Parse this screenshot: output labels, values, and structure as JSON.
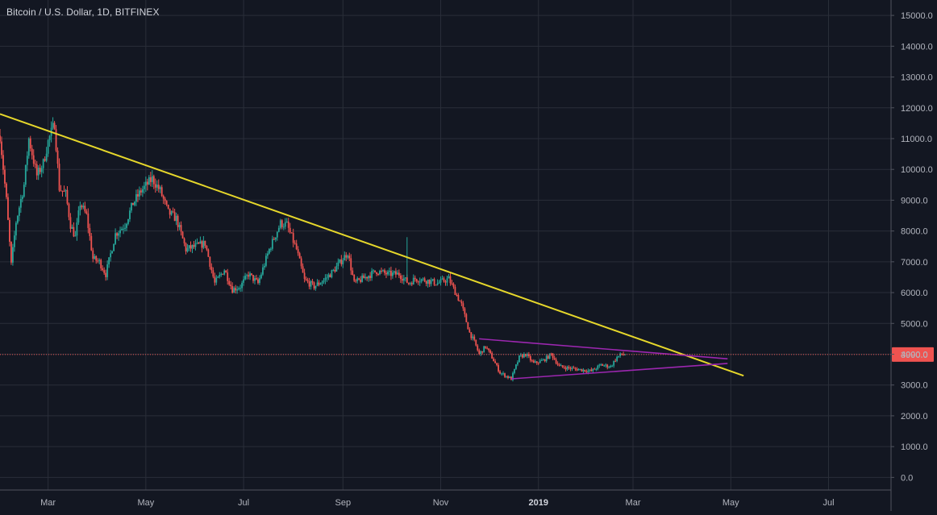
{
  "header": {
    "title": "Bitcoin / U.S. Dollar, 1D, BITFINEX"
  },
  "colors": {
    "background": "#131722",
    "grid": "#2a2e39",
    "up": "#26a69a",
    "down": "#ef5350",
    "trendline": "#e6d72b",
    "triangle": "#9c27b0",
    "price_line": "#ef5350",
    "axis_text": "#b2b5be"
  },
  "chart_data": {
    "type": "candlestick",
    "title": "Bitcoin / U.S. Dollar, 1D, BITFINEX",
    "ylim": [
      -200,
      15500
    ],
    "y_ticks": [
      "0.0",
      "1000.0",
      "2000.0",
      "3000.0",
      "4000.0",
      "5000.0",
      "6000.0",
      "7000.0",
      "8000.0",
      "9000.0",
      "10000.0",
      "11000.0",
      "12000.0",
      "13000.0",
      "14000.0",
      "15000.0"
    ],
    "x_ticks": [
      {
        "label": "Mar",
        "date": "2018-03-01",
        "bold": false
      },
      {
        "label": "May",
        "date": "2018-05-01",
        "bold": false
      },
      {
        "label": "Jul",
        "date": "2018-07-01",
        "bold": false
      },
      {
        "label": "Sep",
        "date": "2018-09-01",
        "bold": false
      },
      {
        "label": "Nov",
        "date": "2018-11-01",
        "bold": false
      },
      {
        "label": "2019",
        "date": "2019-01-01",
        "bold": true
      },
      {
        "label": "Mar",
        "date": "2019-03-01",
        "bold": false
      },
      {
        "label": "May",
        "date": "2019-05-01",
        "bold": false
      },
      {
        "label": "Jul",
        "date": "2019-07-01",
        "bold": false
      }
    ],
    "x_range": [
      "2018-01-30",
      "2019-08-09"
    ],
    "last_price": 3990.0,
    "last_price_label": "3990.0",
    "close_path": [
      [
        "2018-01-30",
        11100
      ],
      [
        "2018-02-03",
        9000
      ],
      [
        "2018-02-06",
        6900
      ],
      [
        "2018-02-09",
        8300
      ],
      [
        "2018-02-14",
        9500
      ],
      [
        "2018-02-17",
        11000
      ],
      [
        "2018-02-22",
        9800
      ],
      [
        "2018-02-26",
        10200
      ],
      [
        "2018-03-01",
        10900
      ],
      [
        "2018-03-05",
        11500
      ],
      [
        "2018-03-08",
        9400
      ],
      [
        "2018-03-12",
        9200
      ],
      [
        "2018-03-15",
        8200
      ],
      [
        "2018-03-18",
        7800
      ],
      [
        "2018-03-21",
        8900
      ],
      [
        "2018-03-25",
        8500
      ],
      [
        "2018-03-29",
        7100
      ],
      [
        "2018-04-02",
        7000
      ],
      [
        "2018-04-06",
        6600
      ],
      [
        "2018-04-12",
        7900
      ],
      [
        "2018-04-18",
        8200
      ],
      [
        "2018-04-23",
        8900
      ],
      [
        "2018-04-28",
        9300
      ],
      [
        "2018-05-05",
        9700
      ],
      [
        "2018-05-10",
        9300
      ],
      [
        "2018-05-15",
        8600
      ],
      [
        "2018-05-20",
        8400
      ],
      [
        "2018-05-26",
        7400
      ],
      [
        "2018-06-01",
        7500
      ],
      [
        "2018-06-07",
        7600
      ],
      [
        "2018-06-13",
        6300
      ],
      [
        "2018-06-19",
        6750
      ],
      [
        "2018-06-24",
        6100
      ],
      [
        "2018-06-29",
        6200
      ],
      [
        "2018-07-04",
        6600
      ],
      [
        "2018-07-10",
        6300
      ],
      [
        "2018-07-17",
        7400
      ],
      [
        "2018-07-24",
        8250
      ],
      [
        "2018-07-28",
        8200
      ],
      [
        "2018-08-03",
        7400
      ],
      [
        "2018-08-08",
        6400
      ],
      [
        "2018-08-14",
        6200
      ],
      [
        "2018-08-20",
        6400
      ],
      [
        "2018-08-26",
        6700
      ],
      [
        "2018-09-04",
        7300
      ],
      [
        "2018-09-08",
        6300
      ],
      [
        "2018-09-15",
        6500
      ],
      [
        "2018-09-22",
        6700
      ],
      [
        "2018-09-29",
        6600
      ],
      [
        "2018-10-06",
        6600
      ],
      [
        "2018-10-12",
        6300
      ],
      [
        "2018-10-16",
        6450
      ],
      [
        "2018-10-23",
        6400
      ],
      [
        "2018-10-30",
        6300
      ],
      [
        "2018-11-06",
        6450
      ],
      [
        "2018-11-14",
        5600
      ],
      [
        "2018-11-19",
        4700
      ],
      [
        "2018-11-22",
        4400
      ],
      [
        "2018-11-25",
        4000
      ],
      [
        "2018-11-29",
        4250
      ],
      [
        "2018-12-03",
        3900
      ],
      [
        "2018-12-08",
        3400
      ],
      [
        "2018-12-15",
        3200
      ],
      [
        "2018-12-20",
        3900
      ],
      [
        "2018-12-24",
        4000
      ],
      [
        "2018-12-29",
        3700
      ],
      [
        "2019-01-04",
        3800
      ],
      [
        "2019-01-09",
        4000
      ],
      [
        "2019-01-14",
        3600
      ],
      [
        "2019-01-20",
        3550
      ],
      [
        "2019-01-27",
        3500
      ],
      [
        "2019-02-03",
        3450
      ],
      [
        "2019-02-09",
        3650
      ],
      [
        "2019-02-15",
        3600
      ],
      [
        "2019-02-19",
        3900
      ],
      [
        "2019-02-22",
        4000
      ],
      [
        "2019-02-24",
        3990
      ]
    ],
    "trendline": {
      "from": [
        "2018-01-30",
        11800
      ],
      "to": [
        "2019-05-09",
        3300
      ]
    },
    "triangle_upper": {
      "from": [
        "2018-11-25",
        4500
      ],
      "to": [
        "2019-04-29",
        3850
      ]
    },
    "triangle_lower": {
      "from": [
        "2018-12-15",
        3200
      ],
      "to": [
        "2019-04-29",
        3700
      ]
    },
    "spike": {
      "date": "2018-10-11",
      "high": 7800,
      "low": 6500
    }
  }
}
